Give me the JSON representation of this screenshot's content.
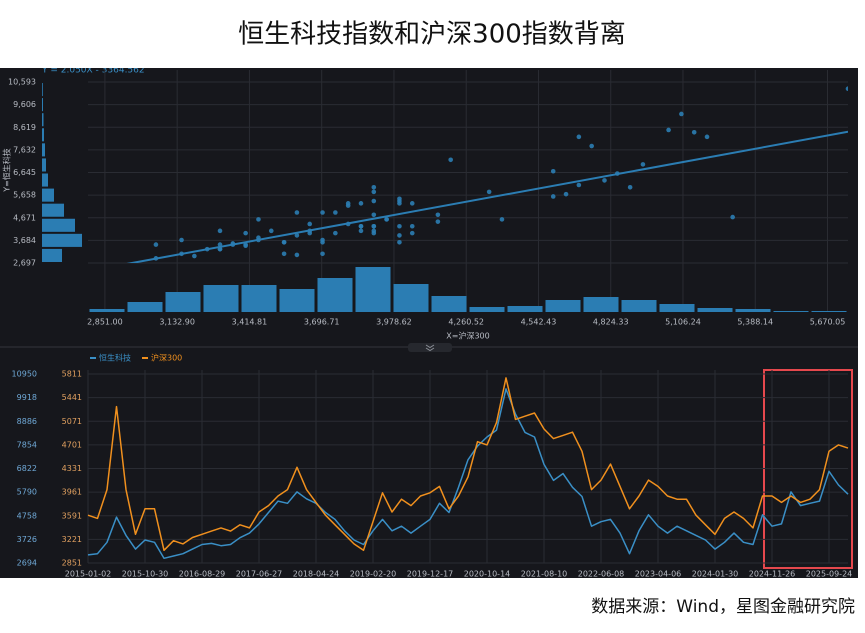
{
  "title": "恒生科技指数和沪深300指数背离",
  "source": "数据来源：Wind，星图金融研究院",
  "chart_data": [
    {
      "type": "scatter",
      "xlabel": "X=沪深300",
      "ylabel": "Y=恒生科技",
      "color": "#2b7db3",
      "trendline": {
        "slope": 2.05,
        "intercept": -3364.562,
        "label": "Y = 2.050X - 3364.562"
      },
      "x": [
        3600,
        3550,
        4000,
        5300,
        4000,
        3300,
        3700,
        3700,
        3050,
        3200,
        3150,
        3250,
        3300,
        3350,
        3400,
        3350,
        3450,
        3400,
        3650,
        3750,
        3900,
        4000,
        4350,
        4000,
        3800,
        3600,
        3450,
        3300,
        3150,
        3050,
        3500,
        3950,
        3650,
        3850,
        3750,
        3900,
        3950,
        4050,
        3700,
        3900,
        4200,
        4750,
        4700,
        5050,
        5750,
        5100,
        5150,
        5200,
        4950,
        4800,
        4850,
        4900,
        4600,
        4000,
        4150,
        4400,
        4050,
        3700,
        3900,
        4150,
        4050,
        3900,
        3850,
        3850,
        3600,
        3450,
        3300,
        3550,
        3650,
        3550,
        3400,
        3900,
        3900,
        3800,
        3900,
        3800,
        3850,
        4000,
        4600,
        4700,
        4650
      ],
      "y": [
        3050,
        3100,
        3600,
        4700,
        3900,
        3300,
        3700,
        3600,
        2900,
        3000,
        3100,
        3300,
        3500,
        3550,
        3450,
        3500,
        3800,
        4000,
        4400,
        4900,
        5400,
        5300,
        5800,
        5500,
        5300,
        4900,
        4600,
        4100,
        3700,
        3500,
        4100,
        4600,
        4100,
        4300,
        4000,
        4300,
        4600,
        5300,
        4900,
        6000,
        7200,
        7800,
        8200,
        8500,
        10300,
        9200,
        8400,
        8200,
        7000,
        6300,
        6600,
        6000,
        5600,
        4300,
        4500,
        4600,
        4000,
        3100,
        4100,
        4800,
        4300,
        4000,
        4300,
        4100,
        3900,
        3700,
        3300,
        3600,
        4000,
        3600,
        3500,
        4800,
        4300,
        4400,
        5800,
        5200,
        5300,
        5400,
        6700,
        6100,
        5700
      ],
      "xlim": [
        2785,
        5750
      ],
      "ylim": [
        2697,
        11117
      ],
      "xticks": [
        {
          "value": 2851,
          "label": "2,851.00"
        },
        {
          "value": 3132.9,
          "label": "3,132.90"
        },
        {
          "value": 3414.81,
          "label": "3,414.81"
        },
        {
          "value": 3696.71,
          "label": "3,696.71"
        },
        {
          "value": 3978.62,
          "label": "3,978.62"
        },
        {
          "value": 4260.52,
          "label": "4,260.52"
        },
        {
          "value": 4542.43,
          "label": "4,542.43"
        },
        {
          "value": 4824.33,
          "label": "4,824.33"
        },
        {
          "value": 5106.24,
          "label": "5,106.24"
        },
        {
          "value": 5388.14,
          "label": "5,388.14"
        },
        {
          "value": 5670.05,
          "label": "5,670.05"
        }
      ],
      "yticks": [
        {
          "value": 2697,
          "label": "2,697"
        },
        {
          "value": 3684,
          "label": "3,684"
        },
        {
          "value": 4671,
          "label": "4,671"
        },
        {
          "value": 5658,
          "label": "5,658"
        },
        {
          "value": 6645,
          "label": "6,645"
        },
        {
          "value": 7632,
          "label": "7,632"
        },
        {
          "value": 8619,
          "label": "8,619"
        },
        {
          "value": 9606,
          "label": "9,606"
        },
        {
          "value": 10593,
          "label": "10,593"
        }
      ],
      "grid": true
    },
    {
      "type": "histogram",
      "orientation": "vertical",
      "color": "#2b7db3",
      "bins": [
        2785,
        2933.25,
        3081.5,
        3229.75,
        3378,
        3526.25,
        3674.5,
        3822.75,
        3971,
        4119.25,
        4267.5,
        4415.75,
        4564,
        4712.25,
        4860.5,
        5008.75,
        5157,
        5305.25,
        5453.5,
        5601.75,
        5750
      ],
      "counts": [
        30,
        100,
        200,
        270,
        270,
        230,
        340,
        450,
        280,
        160,
        50,
        60,
        120,
        150,
        120,
        80,
        40,
        30,
        10,
        10
      ]
    },
    {
      "type": "histogram",
      "orientation": "horizontal",
      "color": "#2b7db3",
      "bins": [
        2697,
        3355,
        4013,
        4671,
        5329,
        5987,
        6645,
        7303,
        7961,
        8619,
        9277,
        9935,
        10593
      ],
      "counts": [
        200,
        400,
        330,
        220,
        120,
        60,
        40,
        30,
        20,
        15,
        10,
        8
      ]
    },
    {
      "type": "line",
      "categories": [
        "2015-01-02",
        null,
        null,
        null,
        null,
        null,
        "2015-10-30",
        null,
        null,
        null,
        null,
        null,
        "2016-08-29",
        null,
        null,
        null,
        null,
        null,
        "2017-06-27",
        null,
        null,
        null,
        null,
        null,
        "2018-04-24",
        null,
        null,
        null,
        null,
        null,
        "2019-02-20",
        null,
        null,
        null,
        null,
        null,
        "2019-12-17",
        null,
        null,
        null,
        null,
        null,
        "2020-10-14",
        null,
        null,
        null,
        null,
        null,
        "2021-08-10",
        null,
        null,
        null,
        null,
        null,
        "2022-06-08",
        null,
        null,
        null,
        null,
        null,
        "2023-04-06",
        null,
        null,
        null,
        null,
        null,
        "2024-01-30",
        null,
        null,
        null,
        null,
        null,
        "2024-11-26",
        null,
        null,
        null,
        null,
        null,
        "2025-09-24",
        null,
        null
      ],
      "series": [
        {
          "name": "恒生科技",
          "color": "#3a8fc6",
          "values": [
            3050,
            3100,
            3600,
            4700,
            3900,
            3300,
            3700,
            3600,
            2900,
            3000,
            3100,
            3300,
            3500,
            3550,
            3450,
            3500,
            3800,
            4000,
            4400,
            4900,
            5400,
            5300,
            5800,
            5500,
            5300,
            4900,
            4600,
            4100,
            3700,
            3500,
            4100,
            4600,
            4100,
            4300,
            4000,
            4300,
            4600,
            5300,
            4900,
            6000,
            7200,
            7800,
            8200,
            8500,
            10300,
            9200,
            8400,
            8200,
            7000,
            6300,
            6600,
            6000,
            5600,
            4300,
            4500,
            4600,
            4000,
            3100,
            4100,
            4800,
            4300,
            4000,
            4300,
            4100,
            3900,
            3700,
            3300,
            3600,
            4000,
            3600,
            3500,
            4800,
            4300,
            4400,
            5800,
            5200,
            5300,
            5400,
            6700,
            6100,
            5700
          ]
        },
        {
          "name": "沪深300",
          "color": "#f0901e",
          "axis": "y2",
          "values": [
            3600,
            3550,
            4000,
            5300,
            4000,
            3300,
            3700,
            3700,
            3050,
            3200,
            3150,
            3250,
            3300,
            3350,
            3400,
            3350,
            3450,
            3400,
            3650,
            3750,
            3900,
            4000,
            4350,
            4000,
            3800,
            3600,
            3450,
            3300,
            3150,
            3050,
            3500,
            3950,
            3650,
            3850,
            3750,
            3900,
            3950,
            4050,
            3700,
            3900,
            4200,
            4750,
            4700,
            5050,
            5750,
            5100,
            5150,
            5200,
            4950,
            4800,
            4850,
            4900,
            4600,
            4000,
            4150,
            4400,
            4050,
            3700,
            3900,
            4150,
            4050,
            3900,
            3850,
            3850,
            3600,
            3450,
            3300,
            3550,
            3650,
            3550,
            3400,
            3900,
            3900,
            3800,
            3900,
            3800,
            3850,
            4000,
            4600,
            4700,
            4650
          ]
        }
      ],
      "ylim": [
        2694,
        10950
      ],
      "yticks": [
        2694,
        3726,
        4758,
        5790,
        6822,
        7854,
        8886,
        9918,
        10950
      ],
      "y2lim": [
        2851,
        5811
      ],
      "y2ticks": [
        2851,
        3221,
        3591,
        3961,
        4331,
        4701,
        5071,
        5441,
        5811
      ],
      "grid": true
    }
  ]
}
